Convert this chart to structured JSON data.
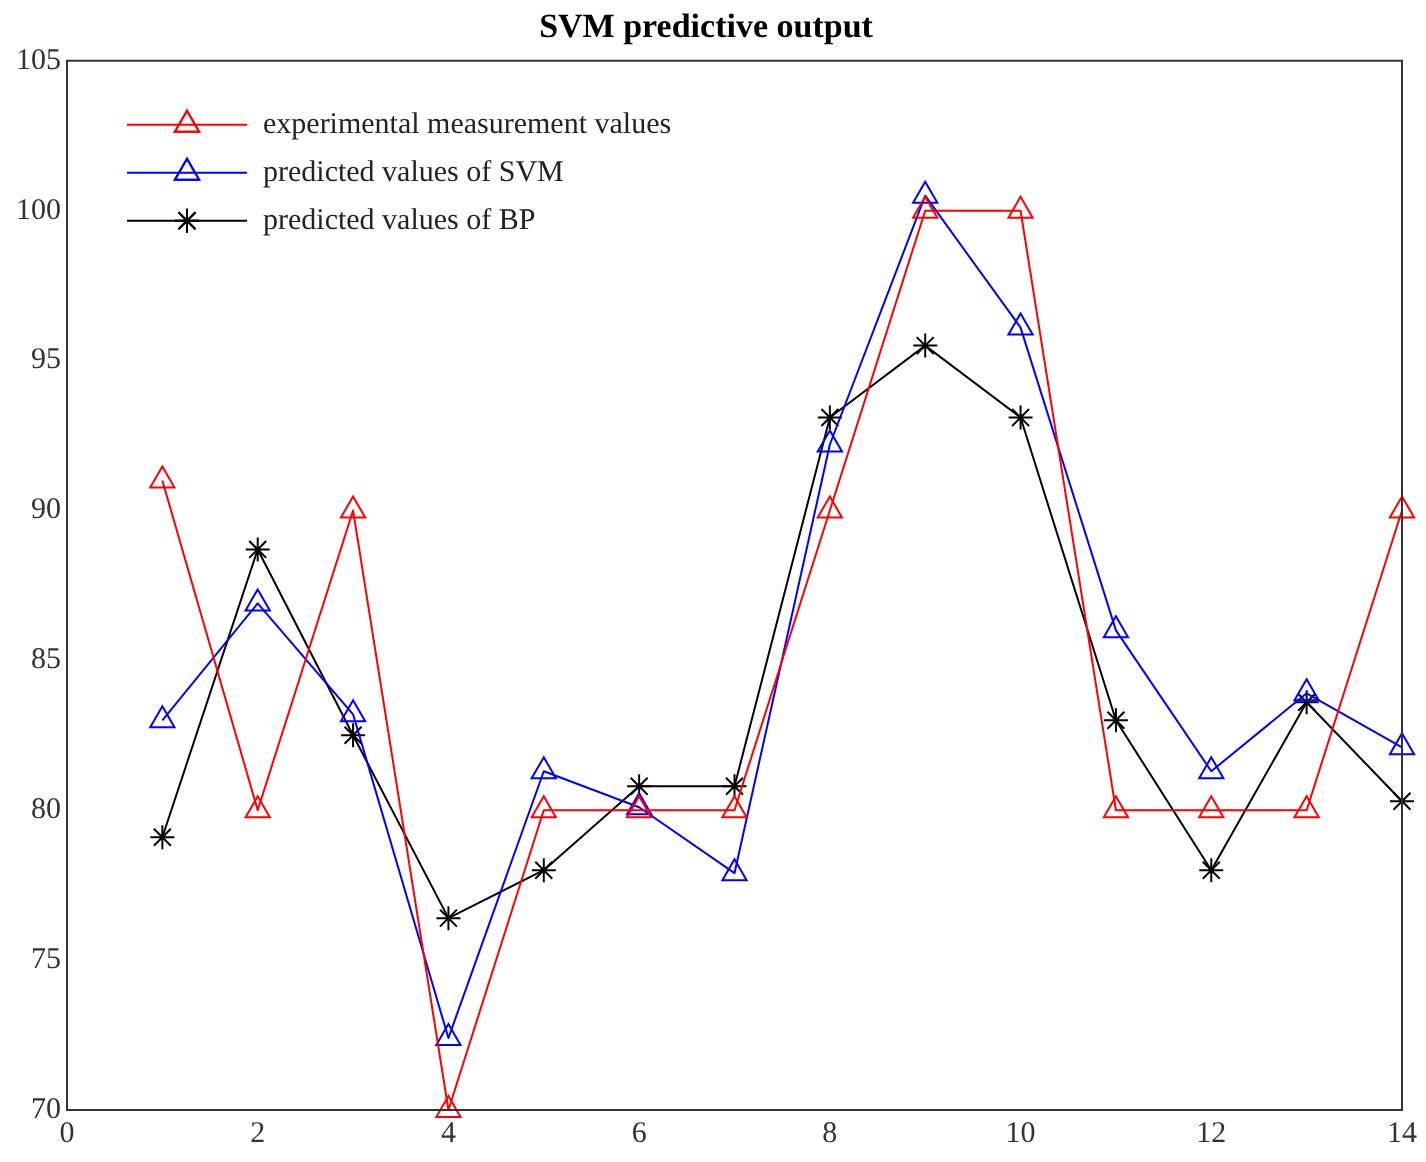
{
  "chart_data": {
    "type": "line",
    "title": "SVM predictive output",
    "x": [
      1,
      2,
      3,
      4,
      5,
      6,
      7,
      8,
      9,
      10,
      11,
      12,
      13,
      14
    ],
    "xlim": [
      0,
      14
    ],
    "xticks": [
      0,
      2,
      4,
      6,
      8,
      10,
      12,
      14
    ],
    "ylim": [
      70,
      105
    ],
    "yticks": [
      70,
      75,
      80,
      85,
      90,
      95,
      100,
      105
    ],
    "grid": false,
    "legend": "top left",
    "line_style": "solid",
    "series": [
      {
        "name": "experimental measurement values",
        "color": "#ff0000",
        "marker": "triangle",
        "values": [
          91,
          80,
          90,
          70,
          80,
          80,
          80,
          90,
          100,
          100,
          80,
          80,
          80,
          90
        ]
      },
      {
        "name": "predicted values of SVM",
        "color": "#0000ff",
        "marker": "triangle",
        "values": [
          83.0,
          86.9,
          83.2,
          72.4,
          81.3,
          80.1,
          77.9,
          92.2,
          100.5,
          96.1,
          86.0,
          81.3,
          83.9,
          82.1
        ]
      },
      {
        "name": "predicted values of BP",
        "color": "#000000",
        "marker": "cross",
        "values": [
          79.1,
          88.7,
          82.5,
          76.4,
          78.0,
          80.8,
          80.8,
          93.1,
          95.5,
          93.1,
          83.0,
          78.0,
          83.6,
          80.3
        ]
      }
    ]
  }
}
